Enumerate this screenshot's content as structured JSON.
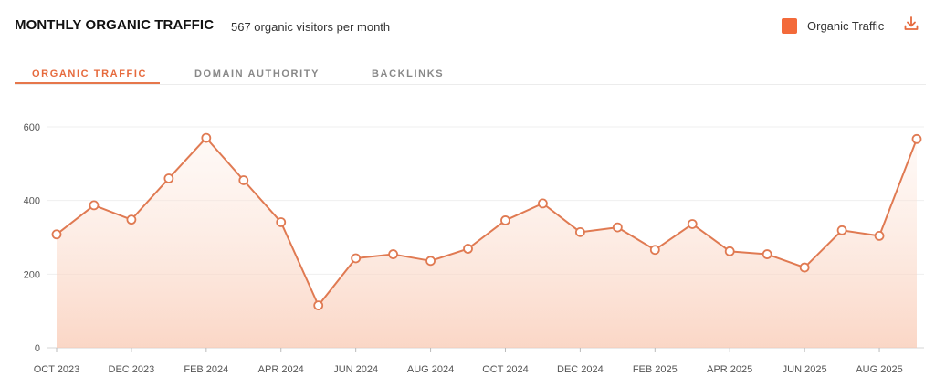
{
  "header": {
    "title": "MONTHLY ORGANIC TRAFFIC",
    "subtitle": "567 organic visitors per month",
    "legend_label": "Organic Traffic",
    "download_icon": "download-icon"
  },
  "tabs": [
    {
      "label": "ORGANIC TRAFFIC",
      "active": true
    },
    {
      "label": "DOMAIN AUTHORITY",
      "active": false
    },
    {
      "label": "BACKLINKS",
      "active": false
    }
  ],
  "colors": {
    "accent": "#e66a3d",
    "line": "#e07a52",
    "legend_swatch": "#f36a3a"
  },
  "chart_data": {
    "type": "area",
    "x": [
      "2023-10",
      "2023-11",
      "2023-12",
      "2024-01",
      "2024-02",
      "2024-03",
      "2024-04",
      "2024-05",
      "2024-06",
      "2024-07",
      "2024-08",
      "2024-09",
      "2024-10",
      "2024-11",
      "2024-12",
      "2025-01",
      "2025-02",
      "2025-03",
      "2025-04",
      "2025-05",
      "2025-06",
      "2025-07",
      "2025-08",
      "2025-09"
    ],
    "series": [
      {
        "name": "Organic Traffic",
        "values": [
          308,
          387,
          348,
          460,
          570,
          455,
          341,
          115,
          243,
          254,
          236,
          269,
          346,
          392,
          314,
          327,
          266,
          336,
          262,
          254,
          218,
          319,
          304,
          567
        ]
      }
    ],
    "x_tick_labels": [
      "OCT 2023",
      "DEC 2023",
      "FEB 2024",
      "APR 2024",
      "JUN 2024",
      "AUG 2024",
      "OCT 2024",
      "DEC 2024",
      "FEB 2025",
      "APR 2025",
      "JUN 2025",
      "AUG 2025"
    ],
    "y_ticks": [
      0,
      200,
      400,
      600
    ],
    "ylim": [
      0,
      600
    ],
    "grid": true,
    "legend": "top-right"
  }
}
